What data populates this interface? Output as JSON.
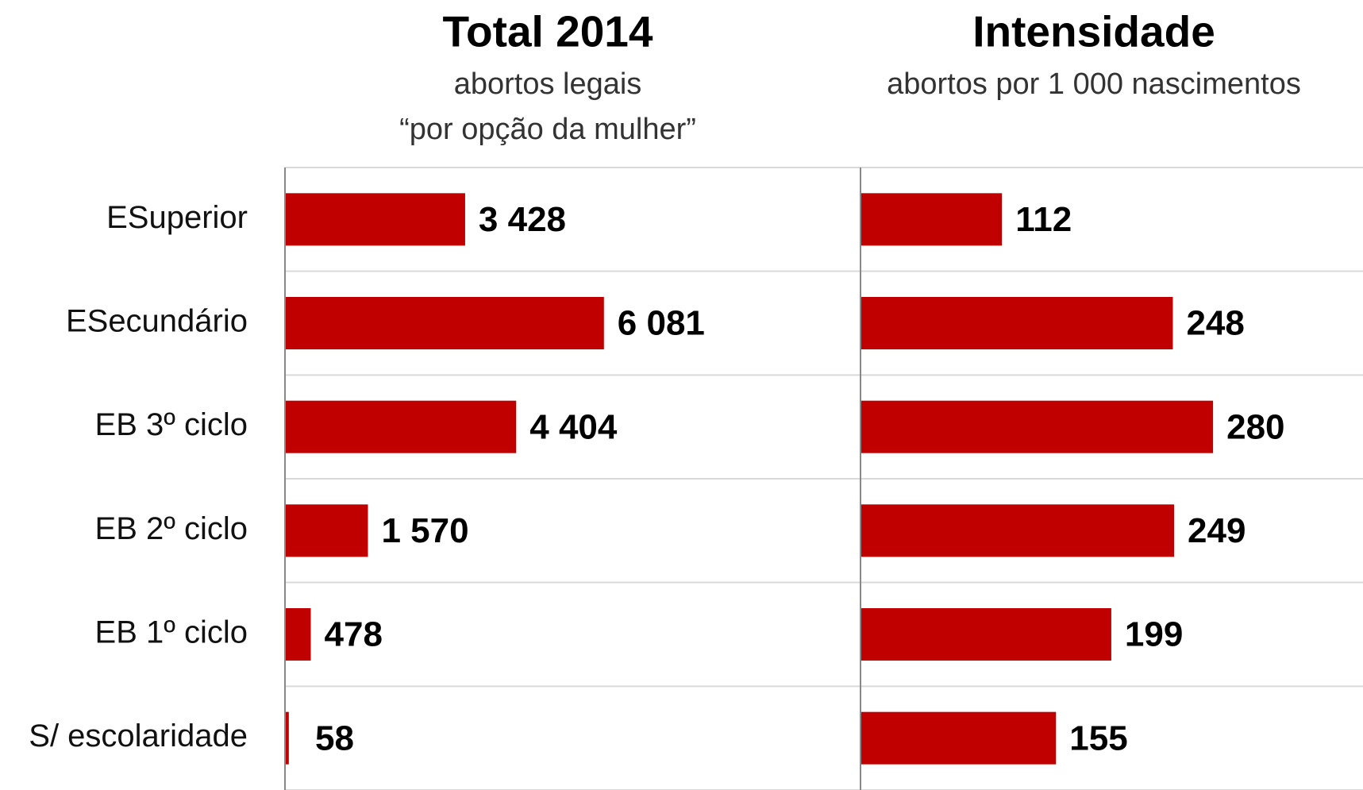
{
  "chart_data": [
    {
      "type": "barh",
      "title": "Total 2014",
      "subtitle": [
        "abortos legais",
        "“por opção da mulher”"
      ],
      "categories": [
        "ESuperior",
        "ESecundário",
        "EB 3º ciclo",
        "EB 2º ciclo",
        "EB 1º ciclo",
        "S/ escolaridade"
      ],
      "values": [
        3428,
        6081,
        4404,
        1570,
        478,
        58
      ],
      "value_labels": [
        "3 428",
        "6 081",
        "4 404",
        "1 570",
        "478",
        "58"
      ],
      "color": "#c00000",
      "xlim": [
        0,
        11000
      ]
    },
    {
      "type": "barh",
      "title": "Intensidade",
      "subtitle": [
        "abortos por 1 000 nascimentos"
      ],
      "values": [
        112,
        248,
        280,
        249,
        199,
        155
      ],
      "color": "#c00000",
      "xlim": [
        0,
        400
      ]
    }
  ]
}
